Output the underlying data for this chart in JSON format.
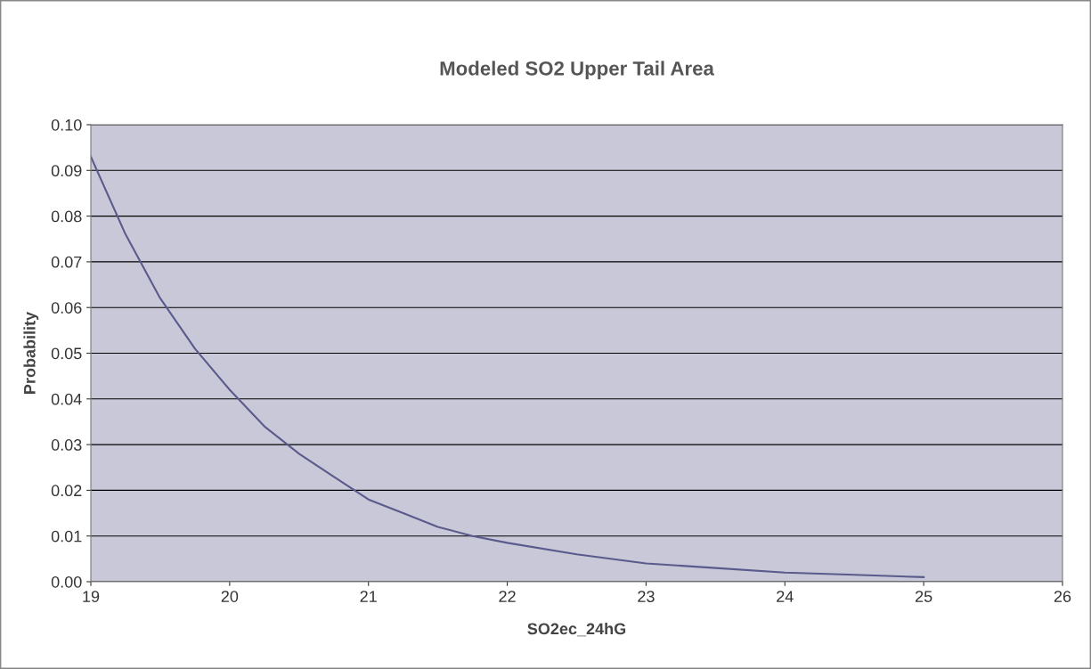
{
  "chart_data": {
    "type": "line",
    "title": "Modeled SO2 Upper Tail Area",
    "xlabel": "SO2ec_24hG",
    "ylabel": "Probability",
    "x": [
      19,
      19.25,
      19.5,
      19.75,
      20,
      20.25,
      20.5,
      20.75,
      21,
      21.25,
      21.5,
      21.75,
      22,
      22.5,
      23,
      23.5,
      24,
      24.5,
      25
    ],
    "series": [
      {
        "color": "#5a5a8c",
        "values": [
          0.093,
          0.076,
          0.062,
          0.051,
          0.042,
          0.034,
          0.028,
          0.023,
          0.018,
          0.015,
          0.012,
          0.01,
          0.0085,
          0.006,
          0.004,
          0.003,
          0.002,
          0.0015,
          0.001
        ]
      }
    ],
    "xlim": [
      19,
      26
    ],
    "xticks": [
      19,
      20,
      21,
      22,
      23,
      24,
      25,
      26
    ],
    "ylim": [
      0,
      0.1
    ],
    "yticks": [
      {
        "value": 0,
        "label": "0.00"
      },
      {
        "value": 0.01,
        "label": "0.01"
      },
      {
        "value": 0.02,
        "label": "0.02"
      },
      {
        "value": 0.03,
        "label": "0.03"
      },
      {
        "value": 0.04,
        "label": "0.04"
      },
      {
        "value": 0.05,
        "label": "0.05"
      },
      {
        "value": 0.06,
        "label": "0.06"
      },
      {
        "value": 0.07,
        "label": "0.07"
      },
      {
        "value": 0.08,
        "label": "0.08"
      },
      {
        "value": 0.09,
        "label": "0.09"
      },
      {
        "value": 0.1,
        "label": "0.10"
      }
    ],
    "grid": "y",
    "legend": false,
    "marker": "none",
    "line_style": "solid"
  }
}
